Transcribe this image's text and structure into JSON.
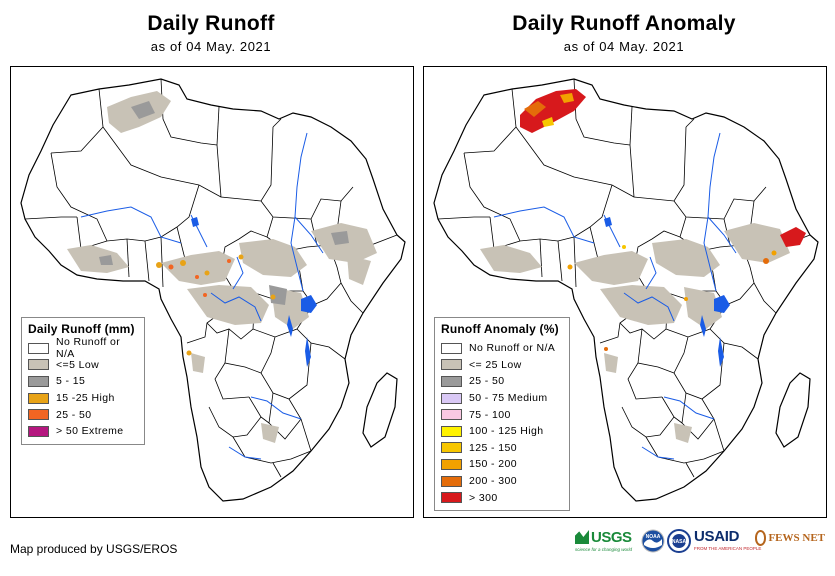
{
  "left_panel": {
    "title": "Daily Runoff",
    "subtitle": "as of 04 May. 2021",
    "legend": {
      "title": "Daily Runoff (mm)",
      "items": [
        {
          "label": "No Runoff or N/A",
          "color": "#ffffff"
        },
        {
          "label": "<=5 Low",
          "color": "#c8c2b6"
        },
        {
          "label": "5 - 15",
          "color": "#9a9a9a"
        },
        {
          "label": "15 -25 High",
          "color": "#e8a317"
        },
        {
          "label": "25 - 50",
          "color": "#f26522"
        },
        {
          "label": "> 50 Extreme",
          "color": "#b5177f"
        }
      ]
    }
  },
  "right_panel": {
    "title": "Daily Runoff Anomaly",
    "subtitle": "as of 04 May. 2021",
    "legend": {
      "title": "Runoff Anomaly (%)",
      "items": [
        {
          "label": "No Runoff or N/A",
          "color": "#ffffff"
        },
        {
          "label": "<= 25 Low",
          "color": "#c8c2b6"
        },
        {
          "label": "25 - 50",
          "color": "#9a9a9a"
        },
        {
          "label": "50 - 75 Medium",
          "color": "#d9c8f5"
        },
        {
          "label": "75 - 100",
          "color": "#f9c8e2"
        },
        {
          "label": "100 - 125 High",
          "color": "#fff200"
        },
        {
          "label": "125 - 150",
          "color": "#f7c600"
        },
        {
          "label": "150 - 200",
          "color": "#f2a100"
        },
        {
          "label": "200 - 300",
          "color": "#e46c0a"
        },
        {
          "label": "> 300",
          "color": "#d7191c"
        }
      ]
    }
  },
  "footer": "Map produced by USGS/EROS",
  "logos": {
    "usgs": "USGS",
    "usgs_tagline": "science for a changing world",
    "noaa": "NOAA",
    "nasa": "NASA",
    "usaid": "USAID",
    "usaid_tagline": "FROM THE AMERICAN PEOPLE",
    "fewsnet": "FEWS NET"
  },
  "colors": {
    "water": "#1a5ce6",
    "border": "#000000"
  }
}
